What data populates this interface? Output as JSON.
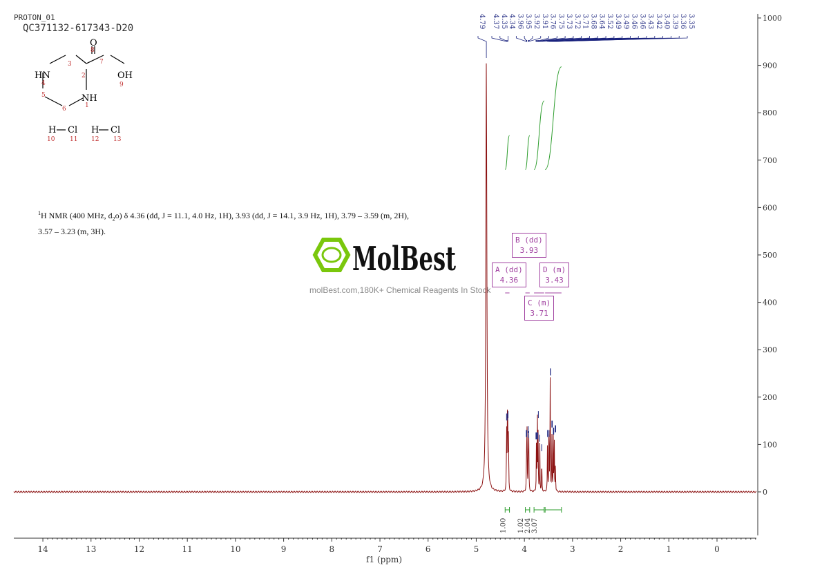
{
  "header": {
    "experiment": "PROTON_01",
    "sample": "QC371132-617343-D20"
  },
  "description": {
    "nucleus_sup": "1",
    "text": "H NMR (400 MHz, d",
    "sub": "2",
    "text2": "o) δ 4.36 (dd, J = 11.1, 4.0 Hz, 1H), 3.93 (dd, J = 14.1, 3.9 Hz, 1H), 3.79 – 3.59 (m, 2H), 3.57 – 3.23 (m, 3H)."
  },
  "watermark": {
    "brand": "MolBest",
    "tagline": "molBest.com,180K+ Chemical Reagents In Stock"
  },
  "structure": {
    "atoms": [
      "HN",
      "NH",
      "OH",
      "O",
      "H",
      "Cl",
      "H",
      "Cl"
    ],
    "numbers": [
      "1",
      "2",
      "3",
      "4",
      "5",
      "6",
      "7",
      "8",
      "9",
      "10",
      "11",
      "12",
      "13"
    ]
  },
  "multiplets": [
    {
      "label": "A (dd)",
      "shift": "4.36"
    },
    {
      "label": "B (dd)",
      "shift": "3.93"
    },
    {
      "label": "C (m)",
      "shift": "3.71"
    },
    {
      "label": "D (m)",
      "shift": "3.43"
    }
  ],
  "chart_data": {
    "type": "line",
    "xlabel": "f1 (ppm)",
    "xlim": [
      14.6,
      -0.8
    ],
    "ylim": [
      -95,
      1010
    ],
    "xticks": [
      14,
      13,
      12,
      11,
      10,
      9,
      8,
      7,
      6,
      5,
      4,
      3,
      2,
      1,
      0
    ],
    "yticks": [
      0,
      100,
      200,
      300,
      400,
      500,
      600,
      700,
      800,
      900,
      1000
    ],
    "peak_labels": [
      "4.79",
      "4.37",
      "4.35",
      "4.34",
      "3.96",
      "3.95",
      "3.92",
      "3.91",
      "3.76",
      "3.75",
      "3.73",
      "3.72",
      "3.71",
      "3.68",
      "3.64",
      "3.52",
      "3.49",
      "3.49",
      "3.46",
      "3.46",
      "3.43",
      "3.42",
      "3.40",
      "3.39",
      "3.36",
      "3.35"
    ],
    "peaks": [
      {
        "ppm": 4.79,
        "height": 914
      },
      {
        "ppm": 4.37,
        "height": 145
      },
      {
        "ppm": 4.355,
        "height": 150
      },
      {
        "ppm": 4.345,
        "height": 148
      },
      {
        "ppm": 4.33,
        "height": 140
      },
      {
        "ppm": 3.955,
        "height": 110
      },
      {
        "ppm": 3.945,
        "height": 118
      },
      {
        "ppm": 3.92,
        "height": 108
      },
      {
        "ppm": 3.91,
        "height": 112
      },
      {
        "ppm": 3.75,
        "height": 105
      },
      {
        "ppm": 3.73,
        "height": 150
      },
      {
        "ppm": 3.715,
        "height": 120
      },
      {
        "ppm": 3.68,
        "height": 100
      },
      {
        "ppm": 3.64,
        "height": 80
      },
      {
        "ppm": 3.52,
        "height": 110
      },
      {
        "ppm": 3.49,
        "height": 180
      },
      {
        "ppm": 3.465,
        "height": 240
      },
      {
        "ppm": 3.43,
        "height": 130
      },
      {
        "ppm": 3.4,
        "height": 115
      },
      {
        "ppm": 3.38,
        "height": 120
      },
      {
        "ppm": 3.355,
        "height": 60
      }
    ],
    "integrals": [
      {
        "from": 4.4,
        "to": 4.31,
        "value": "1.00"
      },
      {
        "from": 3.98,
        "to": 3.89,
        "value": "1.02"
      },
      {
        "from": 3.8,
        "to": 3.59,
        "value": "2.04"
      },
      {
        "from": 3.57,
        "to": 3.23,
        "value": "3.07"
      }
    ],
    "colors": {
      "spectrum": "#8b1010",
      "peak_labels": "#1a237e",
      "integrals": "#2e9d2e",
      "multiplets": "#a040a0"
    }
  }
}
